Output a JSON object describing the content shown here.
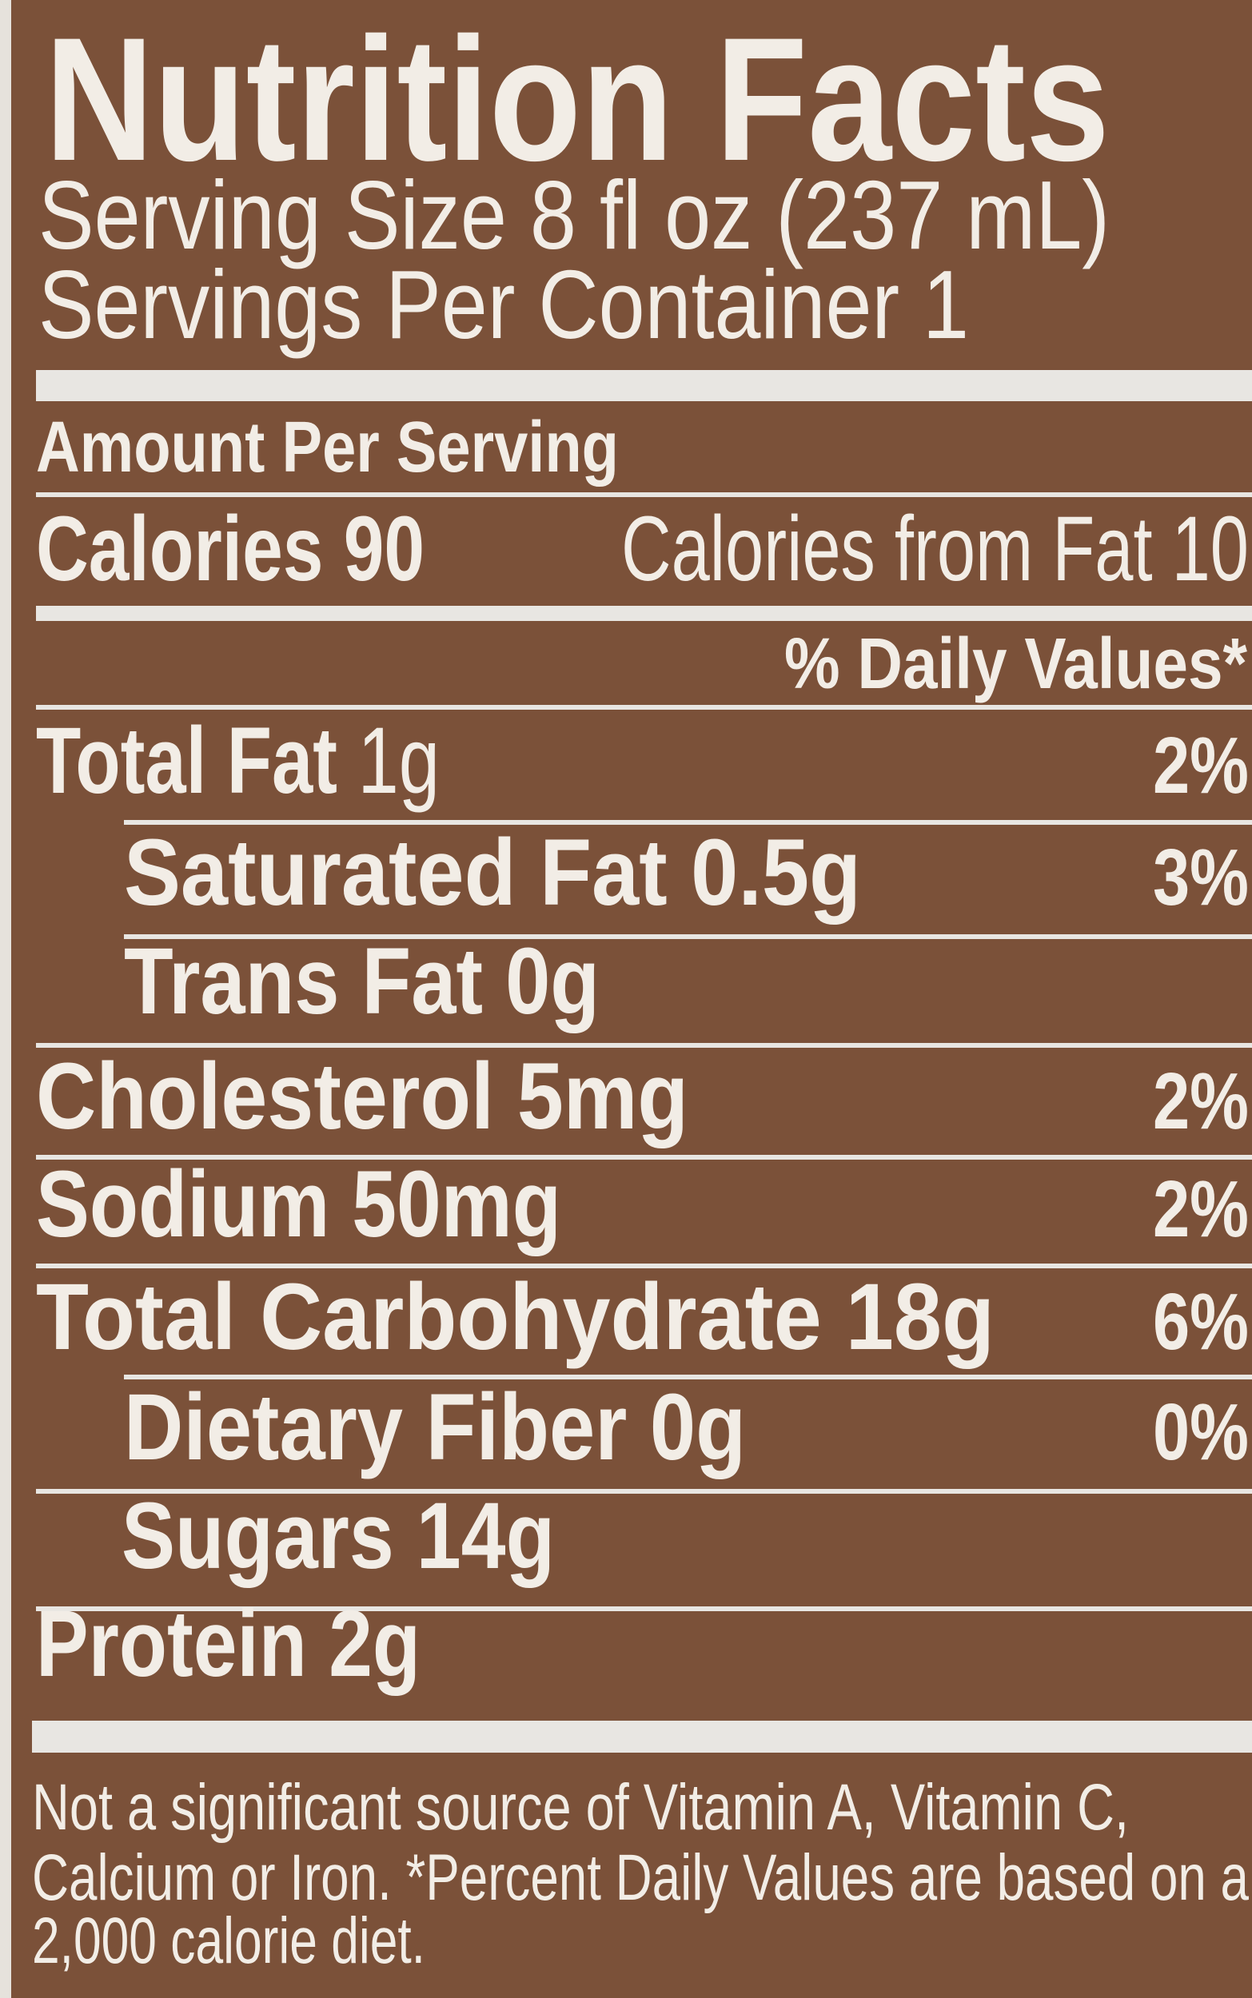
{
  "header": {
    "title": "Nutrition Facts",
    "serving_size": "Serving Size 8 fl oz (237 mL)",
    "servings_per_container": "Servings Per Container 1"
  },
  "amount_per_serving": "Amount Per Serving",
  "calories": "Calories 90",
  "calories_from_fat": "Calories from Fat 10",
  "daily_values_heading": "% Daily Values*",
  "rows": [
    {
      "label": "Total Fat",
      "amount": "1g",
      "dv": "2%"
    },
    {
      "label": "Saturated Fat",
      "amount": "0.5g",
      "dv": "3%"
    },
    {
      "label": "Trans Fat",
      "amount": "0g"
    },
    {
      "label": "Cholesterol",
      "amount": "5mg",
      "dv": "2%"
    },
    {
      "label": "Sodium",
      "amount": "50mg",
      "dv": "2%"
    },
    {
      "label": "Total Carbohydrate",
      "amount": "18g",
      "dv": "6%"
    },
    {
      "label": "Dietary Fiber",
      "amount": "0g",
      "dv": "0%"
    },
    {
      "label": "Sugars",
      "amount": "14g"
    },
    {
      "label": "Protein",
      "amount": "2g"
    }
  ],
  "footnote": [
    "Not a significant source of Vitamin A, Vitamin C,",
    "Calcium or Iron. *Percent Daily Values are based on a",
    "2,000 calorie diet."
  ]
}
